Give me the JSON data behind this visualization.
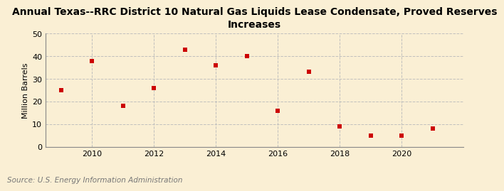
{
  "title": "Annual Texas--RRC District 10 Natural Gas Liquids Lease Condensate, Proved Reserves\nIncreases",
  "ylabel": "Million Barrels",
  "source": "Source: U.S. Energy Information Administration",
  "years": [
    2009,
    2010,
    2011,
    2012,
    2013,
    2014,
    2015,
    2016,
    2017,
    2018,
    2019,
    2020,
    2021
  ],
  "values": [
    25,
    38,
    18,
    26,
    43,
    36,
    40,
    16,
    33,
    9,
    5,
    5,
    8
  ],
  "marker_color": "#cc0000",
  "marker": "s",
  "marker_size": 4,
  "ylim": [
    0,
    50
  ],
  "yticks": [
    0,
    10,
    20,
    30,
    40,
    50
  ],
  "xticks": [
    2010,
    2012,
    2014,
    2016,
    2018,
    2020
  ],
  "xlim": [
    2008.5,
    2022
  ],
  "background_color": "#faefd4",
  "grid_color": "#bbbbbb",
  "title_fontsize": 10,
  "axis_fontsize": 8,
  "source_fontsize": 7.5
}
